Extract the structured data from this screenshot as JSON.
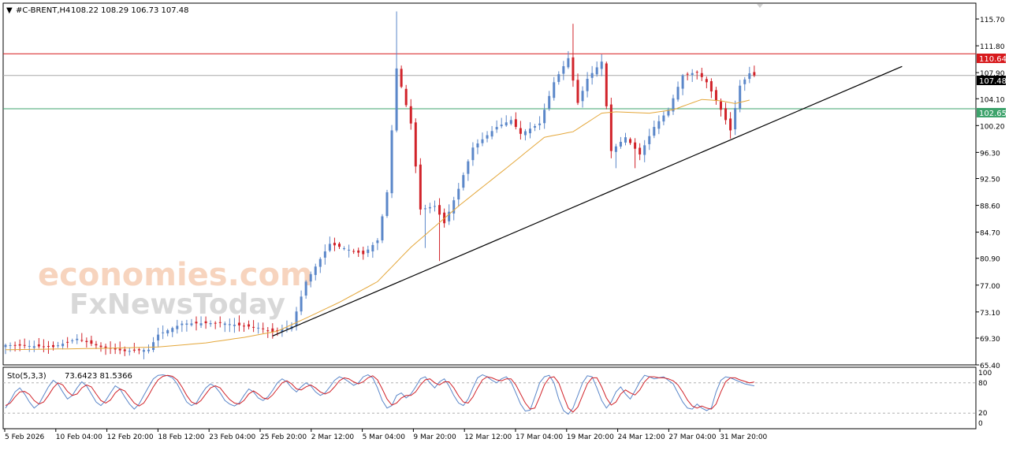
{
  "header": {
    "arrow_glyph": "▼",
    "title": "#C-BRENT,H4",
    "ohlc": "108.22 108.29 106.73 107.48"
  },
  "watermark": {
    "line1": "economies.com",
    "line2": "FxNewsToday"
  },
  "price_labels": {
    "resistance": "110.64",
    "current": "107.48",
    "support": "102.65"
  },
  "colors": {
    "bull_candle": "#5b87c9",
    "bear_candle": "#d1232a",
    "moving_average": "#e4a73a",
    "resistance_line": "#d7191c",
    "support_line": "#3ea36c",
    "current_line": "#a8a8a8",
    "trendline": "#000000",
    "stoch_main": "#5b87c9",
    "stoch_signal": "#d1232a"
  },
  "chart_data": [
    {
      "type": "candlestick",
      "title": "#C-BRENT,H4",
      "instrument": "#C-BRENT",
      "timeframe": "H4",
      "last_bar": {
        "open": 108.22,
        "high": 108.29,
        "low": 106.73,
        "close": 107.48
      },
      "ylim": [
        65.4,
        118.0
      ],
      "y_ticks": [
        "115.70",
        "111.80",
        "107.90",
        "104.10",
        "100.20",
        "96.30",
        "92.50",
        "88.60",
        "84.70",
        "80.90",
        "77.00",
        "73.10",
        "69.30",
        "65.40"
      ],
      "x_ticks": [
        "5 Feb 2026",
        "10 Feb 04:00",
        "12 Feb 20:00",
        "18 Feb 12:00",
        "23 Feb 04:00",
        "25 Feb 20:00",
        "2 Mar 12:00",
        "5 Mar 04:00",
        "9 Mar 20:00",
        "12 Mar 12:00",
        "17 Mar 04:00",
        "19 Mar 20:00",
        "24 Mar 12:00",
        "27 Mar 04:00",
        "31 Mar 20:00"
      ],
      "bar_count": 158,
      "close_path": [
        {
          "bar": 0,
          "close": 68.3
        },
        {
          "bar": 10,
          "close": 68.0
        },
        {
          "bar": 15,
          "close": 69.2
        },
        {
          "bar": 20,
          "close": 68.0
        },
        {
          "bar": 25,
          "close": 67.4
        },
        {
          "bar": 30,
          "close": 67.6
        },
        {
          "bar": 32,
          "close": 69.8
        },
        {
          "bar": 37,
          "close": 71.4
        },
        {
          "bar": 45,
          "close": 71.5
        },
        {
          "bar": 53,
          "close": 70.8
        },
        {
          "bar": 56,
          "close": 70.2
        },
        {
          "bar": 60,
          "close": 71.0
        },
        {
          "bar": 63,
          "close": 77.5
        },
        {
          "bar": 68,
          "close": 83.0
        },
        {
          "bar": 75,
          "close": 81.5
        },
        {
          "bar": 78,
          "close": 83.5
        },
        {
          "bar": 80,
          "close": 90.5
        },
        {
          "bar": 82,
          "close": 108.5
        },
        {
          "bar": 85,
          "close": 100.5
        },
        {
          "bar": 87,
          "close": 88.0
        },
        {
          "bar": 90,
          "close": 88.5
        },
        {
          "bar": 92,
          "close": 86.0
        },
        {
          "bar": 95,
          "close": 91.0
        },
        {
          "bar": 98,
          "close": 97.0
        },
        {
          "bar": 103,
          "close": 100.0
        },
        {
          "bar": 106,
          "close": 101.0
        },
        {
          "bar": 108,
          "close": 99.0
        },
        {
          "bar": 112,
          "close": 100.5
        },
        {
          "bar": 115,
          "close": 106.5
        },
        {
          "bar": 118,
          "close": 110.0
        },
        {
          "bar": 120,
          "close": 103.5
        },
        {
          "bar": 122,
          "close": 107.0
        },
        {
          "bar": 125,
          "close": 109.5
        },
        {
          "bar": 127,
          "close": 96.5
        },
        {
          "bar": 130,
          "close": 98.5
        },
        {
          "bar": 133,
          "close": 96.0
        },
        {
          "bar": 136,
          "close": 100.0
        },
        {
          "bar": 139,
          "close": 102.5
        },
        {
          "bar": 142,
          "close": 107.5
        },
        {
          "bar": 145,
          "close": 108.0
        },
        {
          "bar": 147,
          "close": 106.5
        },
        {
          "bar": 150,
          "close": 102.5
        },
        {
          "bar": 152,
          "close": 99.5
        },
        {
          "bar": 154,
          "close": 106.0
        },
        {
          "bar": 156,
          "close": 107.8
        },
        {
          "bar": 157,
          "close": 107.48
        }
      ],
      "extremes": [
        {
          "bar": 82,
          "high": 116.8
        },
        {
          "bar": 88,
          "low": 82.4
        },
        {
          "bar": 91,
          "low": 80.5
        },
        {
          "bar": 119,
          "high": 115.0
        },
        {
          "bar": 128,
          "low": 94.0
        },
        {
          "bar": 132,
          "low": 94.0
        },
        {
          "bar": 152,
          "low": 98.3
        }
      ],
      "moving_average_path": [
        {
          "bar": 0,
          "value": 67.6
        },
        {
          "bar": 20,
          "value": 67.8
        },
        {
          "bar": 32,
          "value": 68.0
        },
        {
          "bar": 42,
          "value": 68.6
        },
        {
          "bar": 50,
          "value": 69.4
        },
        {
          "bar": 57,
          "value": 70.3
        },
        {
          "bar": 63,
          "value": 72.2
        },
        {
          "bar": 70,
          "value": 74.5
        },
        {
          "bar": 78,
          "value": 77.5
        },
        {
          "bar": 85,
          "value": 82.5
        },
        {
          "bar": 95,
          "value": 88.5
        },
        {
          "bar": 105,
          "value": 94.0
        },
        {
          "bar": 113,
          "value": 98.5
        },
        {
          "bar": 119,
          "value": 99.3
        },
        {
          "bar": 125,
          "value": 102.0
        },
        {
          "bar": 128,
          "value": 102.2
        },
        {
          "bar": 135,
          "value": 102.0
        },
        {
          "bar": 140,
          "value": 102.5
        },
        {
          "bar": 146,
          "value": 104.0
        },
        {
          "bar": 150,
          "value": 103.8
        },
        {
          "bar": 153,
          "value": 103.4
        },
        {
          "bar": 156,
          "value": 103.9
        }
      ],
      "horizontal_lines": [
        {
          "name": "resistance",
          "value": 110.64
        },
        {
          "name": "current",
          "value": 107.48
        },
        {
          "name": "support",
          "value": 102.65
        }
      ],
      "trendline": {
        "start": {
          "bar": 56,
          "value": 69.6
        },
        "end": {
          "bar": 188,
          "value": 108.8
        }
      }
    },
    {
      "type": "line",
      "title": "Sto(5,3,3)",
      "indicator": "Sto(5,3,3)",
      "values_label": "73.6423 81.5366",
      "main_last": 73.6423,
      "signal_last": 81.5366,
      "ylim": [
        0,
        100
      ],
      "y_ticks": [
        "100",
        "80",
        "20",
        "0"
      ],
      "levels": [
        80,
        20
      ],
      "series": [
        {
          "name": "Main",
          "values": [
            30,
            45,
            62,
            70,
            58,
            42,
            30,
            38,
            55,
            72,
            85,
            78,
            62,
            48,
            55,
            70,
            82,
            74,
            58,
            42,
            35,
            45,
            60,
            74,
            68,
            52,
            38,
            28,
            38,
            55,
            72,
            88,
            95,
            96,
            94,
            90,
            78,
            60,
            42,
            35,
            40,
            56,
            70,
            78,
            72,
            60,
            45,
            38,
            34,
            40,
            55,
            68,
            62,
            50,
            45,
            52,
            65,
            80,
            88,
            82,
            70,
            62,
            72,
            80,
            74,
            62,
            55,
            60,
            72,
            85,
            92,
            88,
            82,
            75,
            80,
            92,
            96,
            90,
            70,
            45,
            30,
            35,
            55,
            60,
            50,
            58,
            72,
            88,
            92,
            80,
            70,
            82,
            88,
            74,
            55,
            40,
            35,
            48,
            70,
            90,
            96,
            92,
            85,
            80,
            88,
            92,
            82,
            60,
            38,
            24,
            26,
            52,
            80,
            92,
            95,
            80,
            48,
            25,
            18,
            30,
            55,
            80,
            94,
            92,
            70,
            45,
            30,
            42,
            62,
            72,
            58,
            48,
            64,
            82,
            95,
            92,
            88,
            90,
            92,
            85,
            78,
            60,
            42,
            30,
            28,
            38,
            30,
            25,
            30,
            62,
            85,
            92,
            90,
            86,
            82,
            78,
            76,
            74
          ]
        },
        {
          "name": "Signal",
          "values": [
            35,
            40,
            52,
            62,
            63,
            57,
            45,
            38,
            42,
            55,
            70,
            80,
            76,
            63,
            55,
            58,
            70,
            76,
            72,
            58,
            45,
            40,
            46,
            60,
            68,
            64,
            52,
            40,
            34,
            40,
            55,
            72,
            86,
            93,
            95,
            93,
            86,
            72,
            55,
            42,
            38,
            45,
            58,
            70,
            74,
            70,
            58,
            47,
            40,
            38,
            45,
            58,
            64,
            58,
            50,
            48,
            56,
            68,
            80,
            84,
            78,
            68,
            66,
            72,
            76,
            70,
            62,
            58,
            62,
            72,
            84,
            90,
            88,
            82,
            78,
            82,
            90,
            94,
            86,
            68,
            48,
            36,
            40,
            50,
            55,
            55,
            62,
            76,
            86,
            88,
            80,
            76,
            82,
            82,
            70,
            54,
            42,
            40,
            52,
            70,
            86,
            92,
            90,
            86,
            84,
            88,
            88,
            76,
            58,
            40,
            28,
            30,
            52,
            76,
            90,
            92,
            80,
            54,
            30,
            22,
            32,
            55,
            78,
            90,
            90,
            72,
            50,
            36,
            42,
            58,
            66,
            60,
            56,
            66,
            82,
            92,
            92,
            90,
            90,
            88,
            84,
            76,
            62,
            46,
            34,
            30,
            34,
            30,
            28,
            38,
            62,
            82,
            90,
            90,
            86,
            83,
            80,
            81.5
          ]
        }
      ]
    }
  ]
}
